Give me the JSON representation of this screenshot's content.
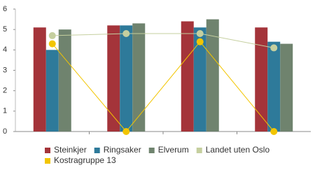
{
  "chart_data": {
    "type": "bar",
    "categories": [
      null,
      null,
      null,
      null
    ],
    "series": [
      {
        "name": "Steinkjer",
        "color": "#a4343a",
        "values": [
          5.1,
          5.2,
          5.4,
          5.1
        ]
      },
      {
        "name": "Ringsaker",
        "color": "#2e7a9a",
        "values": [
          4.0,
          5.2,
          5.1,
          4.4
        ]
      },
      {
        "name": "Elverum",
        "color": "#6f836e",
        "values": [
          5.0,
          5.3,
          5.5,
          4.3
        ]
      },
      {
        "name": "Landet uten Oslo",
        "type": "line",
        "color": "#c5cf9f",
        "values": [
          4.7,
          4.8,
          4.8,
          4.1
        ]
      },
      {
        "name": "Kostragruppe 13",
        "type": "line",
        "color": "#f2c500",
        "values": [
          4.3,
          0,
          4.4,
          0
        ]
      }
    ],
    "ylim": [
      0,
      6
    ],
    "yticks": [
      0,
      1,
      2,
      3,
      4,
      5,
      6
    ],
    "grid": false
  }
}
